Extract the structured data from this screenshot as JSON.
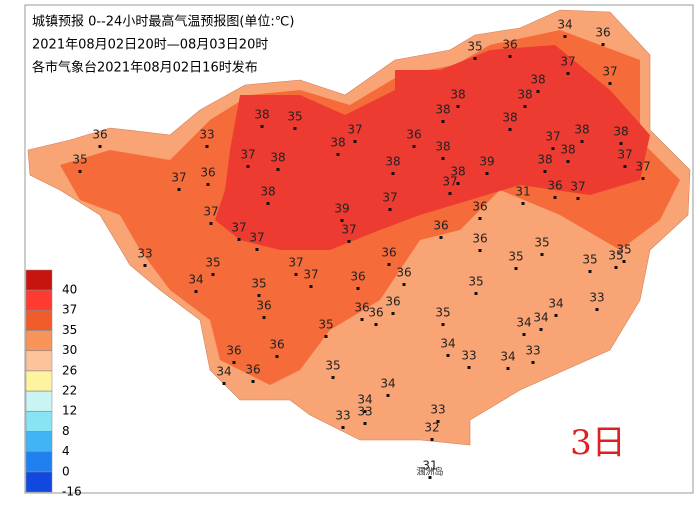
{
  "header": {
    "title": "城镇预报 0--24小时最高气温预报图(单位:℃)",
    "period": "2021年08月02日20时—08月03日20时",
    "issuer": "各市气象台2021年08月02日16时发布"
  },
  "legend": {
    "labels": [
      "40",
      "37",
      "35",
      "30",
      "26",
      "22",
      "12",
      "8",
      "4",
      "0",
      "-16"
    ]
  },
  "day_label": "3日",
  "island_label": "涠洲岛",
  "stations": [
    34,
    36,
    35,
    36,
    37,
    37,
    38,
    38,
    38,
    38,
    38,
    35,
    38,
    33,
    36,
    35,
    37,
    36,
    37,
    38,
    38,
    38,
    37,
    37,
    38,
    38,
    38,
    37,
    38,
    38,
    39,
    38,
    37,
    36,
    37,
    31,
    36,
    37,
    38,
    37,
    39,
    37,
    36,
    37,
    37,
    37,
    36,
    36,
    35,
    35,
    35,
    35,
    33,
    35,
    37,
    37,
    36,
    36,
    36,
    35,
    34,
    35,
    35,
    33,
    36,
    36,
    36,
    36,
    35,
    34,
    35,
    34,
    34,
    34,
    36,
    36,
    33,
    34,
    33,
    34,
    36,
    35,
    34,
    34,
    33,
    33,
    33,
    32,
    31
  ]
}
